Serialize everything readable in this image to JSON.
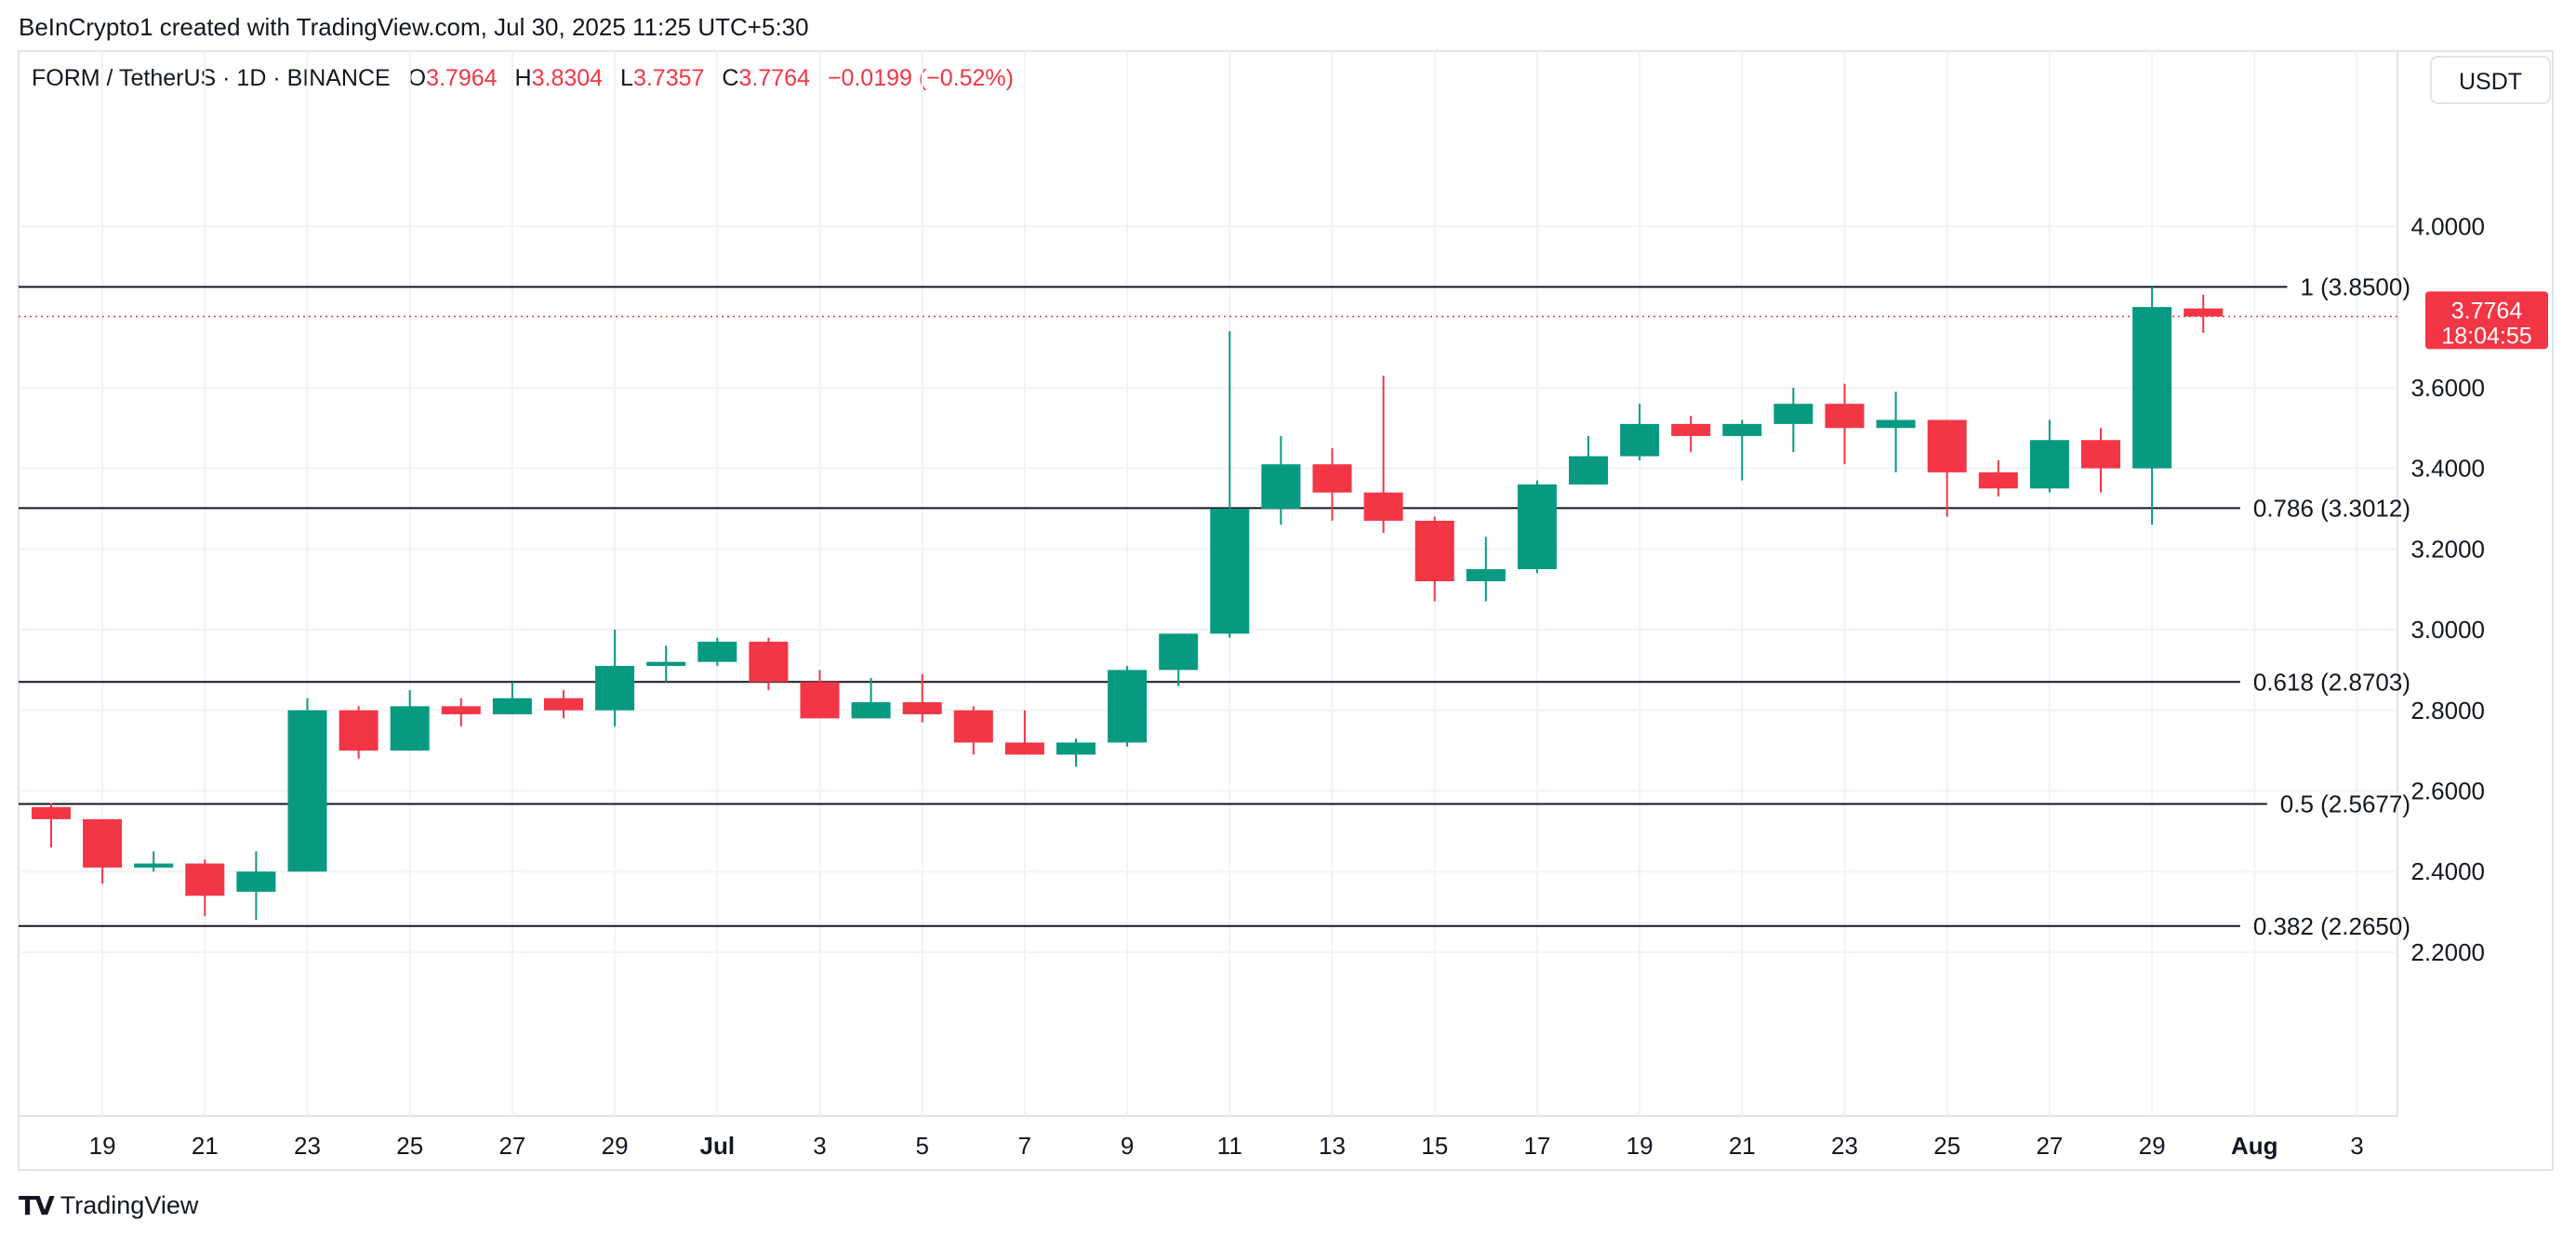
{
  "header": {
    "attribution": "BeInCrypto1 created with TradingView.com, Jul 30, 2025 11:25 UTC+5:30"
  },
  "legend": {
    "symbol": "FORM / TetherUS · 1D · BINANCE",
    "open_label": "O",
    "open": "3.7964",
    "high_label": "H",
    "high": "3.8304",
    "low_label": "L",
    "low": "3.7357",
    "close_label": "C",
    "close": "3.7764",
    "change": "−0.0199 (−0.52%)"
  },
  "currency_button": "USDT",
  "price_tag": {
    "price": "3.7764",
    "countdown": "18:04:55"
  },
  "footer": {
    "brand": "TradingView"
  },
  "colors": {
    "up": "#089981",
    "down": "#f23645",
    "grid": "#f0f3fa",
    "fib_line": "#131722",
    "price_line": "#f23645"
  },
  "chart_data": {
    "type": "candlestick",
    "ylim": [
      2.02,
      4.22
    ],
    "y_ticks": [
      "4.0000",
      "3.6000",
      "3.4000",
      "3.2000",
      "3.0000",
      "2.8000",
      "2.6000",
      "2.4000",
      "2.2000"
    ],
    "x_ticks": [
      "19",
      "21",
      "23",
      "25",
      "27",
      "29",
      "Jul",
      "3",
      "5",
      "7",
      "9",
      "11",
      "13",
      "15",
      "17",
      "19",
      "21",
      "23",
      "25",
      "27",
      "29",
      "Aug",
      "3"
    ],
    "x_tick_day_index": [
      1,
      3,
      5,
      7,
      9,
      11,
      13,
      15,
      17,
      19,
      21,
      23,
      25,
      27,
      29,
      31,
      33,
      35,
      37,
      39,
      41,
      43,
      45
    ],
    "candles": [
      {
        "o": 2.56,
        "h": 2.57,
        "l": 2.46,
        "c": 2.53
      },
      {
        "o": 2.53,
        "h": 2.53,
        "l": 2.37,
        "c": 2.41
      },
      {
        "o": 2.41,
        "h": 2.45,
        "l": 2.4,
        "c": 2.42
      },
      {
        "o": 2.42,
        "h": 2.43,
        "l": 2.29,
        "c": 2.34
      },
      {
        "o": 2.35,
        "h": 2.45,
        "l": 2.28,
        "c": 2.4
      },
      {
        "o": 2.4,
        "h": 2.83,
        "l": 2.4,
        "c": 2.8
      },
      {
        "o": 2.8,
        "h": 2.81,
        "l": 2.68,
        "c": 2.7
      },
      {
        "o": 2.7,
        "h": 2.85,
        "l": 2.7,
        "c": 2.81
      },
      {
        "o": 2.81,
        "h": 2.83,
        "l": 2.76,
        "c": 2.79
      },
      {
        "o": 2.79,
        "h": 2.87,
        "l": 2.79,
        "c": 2.83
      },
      {
        "o": 2.83,
        "h": 2.85,
        "l": 2.78,
        "c": 2.8
      },
      {
        "o": 2.8,
        "h": 3.0,
        "l": 2.76,
        "c": 2.91
      },
      {
        "o": 2.91,
        "h": 2.96,
        "l": 2.87,
        "c": 2.92
      },
      {
        "o": 2.92,
        "h": 2.98,
        "l": 2.91,
        "c": 2.97
      },
      {
        "o": 2.97,
        "h": 2.98,
        "l": 2.85,
        "c": 2.87
      },
      {
        "o": 2.87,
        "h": 2.9,
        "l": 2.78,
        "c": 2.78
      },
      {
        "o": 2.78,
        "h": 2.88,
        "l": 2.78,
        "c": 2.82
      },
      {
        "o": 2.82,
        "h": 2.89,
        "l": 2.77,
        "c": 2.79
      },
      {
        "o": 2.8,
        "h": 2.81,
        "l": 2.69,
        "c": 2.72
      },
      {
        "o": 2.72,
        "h": 2.8,
        "l": 2.69,
        "c": 2.69
      },
      {
        "o": 2.69,
        "h": 2.73,
        "l": 2.66,
        "c": 2.72
      },
      {
        "o": 2.72,
        "h": 2.91,
        "l": 2.71,
        "c": 2.9
      },
      {
        "o": 2.9,
        "h": 2.99,
        "l": 2.86,
        "c": 2.99
      },
      {
        "o": 2.99,
        "h": 3.74,
        "l": 2.98,
        "c": 3.3
      },
      {
        "o": 3.3,
        "h": 3.48,
        "l": 3.26,
        "c": 3.41
      },
      {
        "o": 3.41,
        "h": 3.45,
        "l": 3.27,
        "c": 3.34
      },
      {
        "o": 3.34,
        "h": 3.63,
        "l": 3.24,
        "c": 3.27
      },
      {
        "o": 3.27,
        "h": 3.28,
        "l": 3.07,
        "c": 3.12
      },
      {
        "o": 3.12,
        "h": 3.23,
        "l": 3.07,
        "c": 3.15
      },
      {
        "o": 3.15,
        "h": 3.37,
        "l": 3.14,
        "c": 3.36
      },
      {
        "o": 3.36,
        "h": 3.48,
        "l": 3.36,
        "c": 3.43
      },
      {
        "o": 3.43,
        "h": 3.56,
        "l": 3.42,
        "c": 3.51
      },
      {
        "o": 3.51,
        "h": 3.53,
        "l": 3.44,
        "c": 3.48
      },
      {
        "o": 3.48,
        "h": 3.52,
        "l": 3.37,
        "c": 3.51
      },
      {
        "o": 3.51,
        "h": 3.6,
        "l": 3.44,
        "c": 3.56
      },
      {
        "o": 3.56,
        "h": 3.61,
        "l": 3.41,
        "c": 3.5
      },
      {
        "o": 3.5,
        "h": 3.59,
        "l": 3.39,
        "c": 3.52
      },
      {
        "o": 3.52,
        "h": 3.52,
        "l": 3.28,
        "c": 3.39
      },
      {
        "o": 3.39,
        "h": 3.42,
        "l": 3.33,
        "c": 3.35
      },
      {
        "o": 3.35,
        "h": 3.52,
        "l": 3.34,
        "c": 3.47
      },
      {
        "o": 3.47,
        "h": 3.5,
        "l": 3.34,
        "c": 3.4
      },
      {
        "o": 3.4,
        "h": 3.85,
        "l": 3.26,
        "c": 3.8
      },
      {
        "o": 3.7964,
        "h": 3.8304,
        "l": 3.7357,
        "c": 3.7764
      }
    ],
    "fib_levels": [
      {
        "label": "1 (3.8500)",
        "value": 3.85
      },
      {
        "label": "0.786 (3.3012)",
        "value": 3.3012
      },
      {
        "label": "0.618 (2.8703)",
        "value": 2.8703
      },
      {
        "label": "0.5 (2.5677)",
        "value": 2.5677
      },
      {
        "label": "0.382 (2.2650)",
        "value": 2.265
      }
    ],
    "last_price": 3.7764
  }
}
